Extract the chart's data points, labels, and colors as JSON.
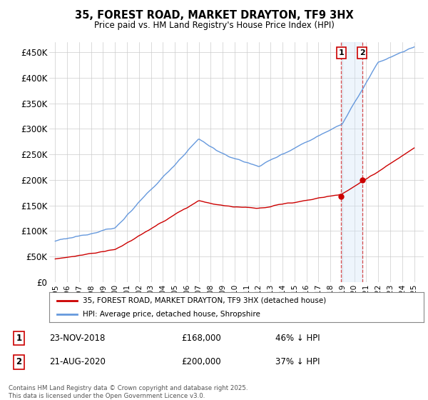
{
  "title": "35, FOREST ROAD, MARKET DRAYTON, TF9 3HX",
  "subtitle": "Price paid vs. HM Land Registry's House Price Index (HPI)",
  "legend_entry1": "35, FOREST ROAD, MARKET DRAYTON, TF9 3HX (detached house)",
  "legend_entry2": "HPI: Average price, detached house, Shropshire",
  "transaction1_date": "23-NOV-2018",
  "transaction1_price": "£168,000",
  "transaction1_hpi": "46% ↓ HPI",
  "transaction1_year": 2018.9,
  "transaction1_value": 168000,
  "transaction2_date": "21-AUG-2020",
  "transaction2_price": "£200,000",
  "transaction2_hpi": "37% ↓ HPI",
  "transaction2_year": 2020.65,
  "transaction2_value": 200000,
  "hpi_color": "#6699DD",
  "price_color": "#CC0000",
  "shade_color": "#D0E4F7",
  "grid_color": "#CCCCCC",
  "background_color": "#FFFFFF",
  "ylim": [
    0,
    470000
  ],
  "yticks": [
    0,
    50000,
    100000,
    150000,
    200000,
    250000,
    300000,
    350000,
    400000,
    450000
  ],
  "ytick_labels": [
    "£0",
    "£50K",
    "£100K",
    "£150K",
    "£200K",
    "£250K",
    "£300K",
    "£350K",
    "£400K",
    "£450K"
  ],
  "xlim_start": 1994.5,
  "xlim_end": 2025.8,
  "xtick_years": [
    1995,
    1996,
    1997,
    1998,
    1999,
    2000,
    2001,
    2002,
    2003,
    2004,
    2005,
    2006,
    2007,
    2008,
    2009,
    2010,
    2011,
    2012,
    2013,
    2014,
    2015,
    2016,
    2017,
    2018,
    2019,
    2020,
    2021,
    2022,
    2023,
    2024,
    2025
  ],
  "footnote": "Contains HM Land Registry data © Crown copyright and database right 2025.\nThis data is licensed under the Open Government Licence v3.0."
}
